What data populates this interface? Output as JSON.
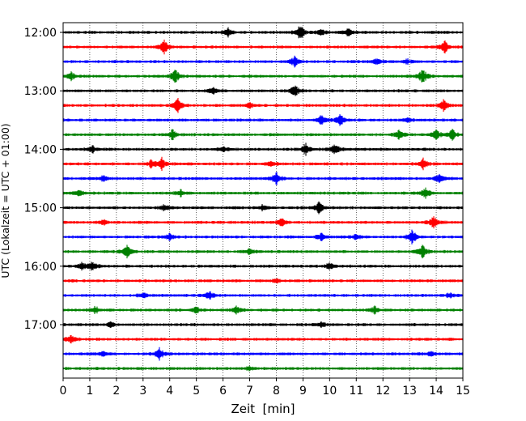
{
  "chart_data": {
    "type": "line",
    "title": "",
    "xlabel": "Zeit  [min]",
    "ylabel": "UTC (Lokalzeit = UTC + 01:00)",
    "xlim": [
      0,
      15
    ],
    "x_ticks": [
      "0",
      "1",
      "2",
      "3",
      "4",
      "5",
      "6",
      "7",
      "8",
      "9",
      "10",
      "11",
      "12",
      "13",
      "14",
      "15"
    ],
    "y_ticks": [
      "12:00",
      "13:00",
      "14:00",
      "15:00",
      "16:00",
      "17:00"
    ],
    "grid": "vertical dotted lines at each minute",
    "trace_interval_minutes": 15,
    "start_time": "12:00",
    "color_cycle": [
      "#000000",
      "#ff0000",
      "#0000ff",
      "#008000"
    ],
    "series": [
      {
        "start": "12:00",
        "color": "#000000",
        "events": [
          {
            "x": 8.9,
            "amp": 1.0
          },
          {
            "x": 6.2,
            "amp": 0.5
          },
          {
            "x": 9.7,
            "amp": 0.4
          },
          {
            "x": 10.7,
            "amp": 0.4
          }
        ]
      },
      {
        "start": "12:15",
        "color": "#ff0000",
        "events": [
          {
            "x": 3.8,
            "amp": 0.8
          },
          {
            "x": 14.3,
            "amp": 0.8
          }
        ]
      },
      {
        "start": "12:30",
        "color": "#0000ff",
        "events": [
          {
            "x": 8.7,
            "amp": 0.7
          },
          {
            "x": 11.8,
            "amp": 0.4
          },
          {
            "x": 12.9,
            "amp": 0.3
          }
        ]
      },
      {
        "start": "12:45",
        "color": "#008000",
        "events": [
          {
            "x": 4.2,
            "amp": 0.8
          },
          {
            "x": 13.5,
            "amp": 0.8
          },
          {
            "x": 0.3,
            "amp": 0.4
          }
        ]
      },
      {
        "start": "13:00",
        "color": "#000000",
        "events": [
          {
            "x": 8.7,
            "amp": 0.7
          },
          {
            "x": 5.6,
            "amp": 0.4
          }
        ]
      },
      {
        "start": "13:15",
        "color": "#ff0000",
        "events": [
          {
            "x": 4.3,
            "amp": 0.8
          },
          {
            "x": 14.3,
            "amp": 0.7
          },
          {
            "x": 7.0,
            "amp": 0.3
          }
        ]
      },
      {
        "start": "13:30",
        "color": "#0000ff",
        "events": [
          {
            "x": 9.7,
            "amp": 0.7
          },
          {
            "x": 10.4,
            "amp": 0.6
          },
          {
            "x": 12.9,
            "amp": 0.3
          }
        ]
      },
      {
        "start": "13:45",
        "color": "#008000",
        "events": [
          {
            "x": 4.1,
            "amp": 0.6
          },
          {
            "x": 12.6,
            "amp": 0.5
          },
          {
            "x": 14.0,
            "amp": 0.5
          },
          {
            "x": 14.6,
            "amp": 0.6
          }
        ]
      },
      {
        "start": "14:00",
        "color": "#000000",
        "events": [
          {
            "x": 9.1,
            "amp": 0.7
          },
          {
            "x": 10.2,
            "amp": 0.6
          },
          {
            "x": 1.1,
            "amp": 0.4
          },
          {
            "x": 6.0,
            "amp": 0.3
          }
        ]
      },
      {
        "start": "14:15",
        "color": "#ff0000",
        "events": [
          {
            "x": 3.7,
            "amp": 0.7
          },
          {
            "x": 13.5,
            "amp": 0.6
          },
          {
            "x": 3.3,
            "amp": 0.4
          },
          {
            "x": 7.8,
            "amp": 0.3
          }
        ]
      },
      {
        "start": "14:30",
        "color": "#0000ff",
        "events": [
          {
            "x": 8.0,
            "amp": 0.7
          },
          {
            "x": 14.1,
            "amp": 0.5
          },
          {
            "x": 1.5,
            "amp": 0.3
          }
        ]
      },
      {
        "start": "14:45",
        "color": "#008000",
        "events": [
          {
            "x": 13.6,
            "amp": 0.6
          },
          {
            "x": 4.4,
            "amp": 0.4
          },
          {
            "x": 0.6,
            "amp": 0.4
          }
        ]
      },
      {
        "start": "15:00",
        "color": "#000000",
        "events": [
          {
            "x": 9.6,
            "amp": 0.7
          },
          {
            "x": 3.8,
            "amp": 0.4
          },
          {
            "x": 7.5,
            "amp": 0.3
          }
        ]
      },
      {
        "start": "15:15",
        "color": "#ff0000",
        "events": [
          {
            "x": 13.9,
            "amp": 0.6
          },
          {
            "x": 8.2,
            "amp": 0.4
          },
          {
            "x": 1.5,
            "amp": 0.3
          }
        ]
      },
      {
        "start": "15:30",
        "color": "#0000ff",
        "events": [
          {
            "x": 13.1,
            "amp": 0.9
          },
          {
            "x": 9.7,
            "amp": 0.4
          },
          {
            "x": 4.0,
            "amp": 0.4
          },
          {
            "x": 11.0,
            "amp": 0.4
          }
        ]
      },
      {
        "start": "15:45",
        "color": "#008000",
        "events": [
          {
            "x": 2.4,
            "amp": 0.7
          },
          {
            "x": 13.5,
            "amp": 0.8
          },
          {
            "x": 7.0,
            "amp": 0.3
          }
        ]
      },
      {
        "start": "16:00",
        "color": "#000000",
        "events": [
          {
            "x": 1.1,
            "amp": 0.5
          },
          {
            "x": 0.7,
            "amp": 0.4
          },
          {
            "x": 10.0,
            "amp": 0.4
          }
        ]
      },
      {
        "start": "16:15",
        "color": "#ff0000",
        "events": [
          {
            "x": 8.0,
            "amp": 0.2
          }
        ]
      },
      {
        "start": "16:30",
        "color": "#0000ff",
        "events": [
          {
            "x": 5.5,
            "amp": 0.4
          },
          {
            "x": 14.5,
            "amp": 0.3
          },
          {
            "x": 3.0,
            "amp": 0.3
          }
        ]
      },
      {
        "start": "16:45",
        "color": "#008000",
        "events": [
          {
            "x": 1.2,
            "amp": 0.4
          },
          {
            "x": 5.0,
            "amp": 0.4
          },
          {
            "x": 6.5,
            "amp": 0.4
          },
          {
            "x": 11.7,
            "amp": 0.4
          }
        ]
      },
      {
        "start": "17:00",
        "color": "#000000",
        "events": [
          {
            "x": 1.8,
            "amp": 0.3
          },
          {
            "x": 9.7,
            "amp": 0.3
          }
        ]
      },
      {
        "start": "17:15",
        "color": "#ff0000",
        "events": [
          {
            "x": 0.3,
            "amp": 0.4
          }
        ]
      },
      {
        "start": "17:30",
        "color": "#0000ff",
        "events": [
          {
            "x": 3.6,
            "amp": 0.8
          },
          {
            "x": 1.5,
            "amp": 0.3
          },
          {
            "x": 13.8,
            "amp": 0.3
          }
        ]
      },
      {
        "start": "17:45",
        "color": "#008000",
        "events": [
          {
            "x": 7.0,
            "amp": 0.2
          }
        ]
      }
    ]
  }
}
